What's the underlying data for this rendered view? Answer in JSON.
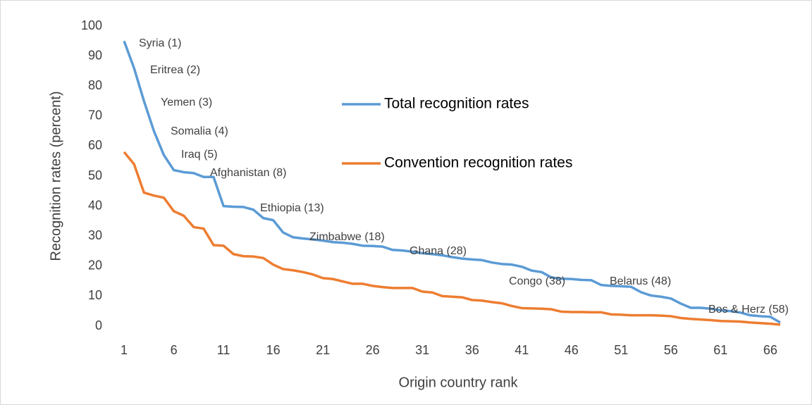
{
  "chart_data": {
    "type": "line",
    "x_label": "Origin country rank",
    "y_label": "Recognition rates (percent)",
    "x": [
      1,
      2,
      3,
      4,
      5,
      6,
      7,
      8,
      9,
      10,
      11,
      12,
      13,
      14,
      15,
      16,
      17,
      18,
      19,
      20,
      21,
      22,
      23,
      24,
      25,
      26,
      27,
      28,
      29,
      30,
      31,
      32,
      33,
      34,
      35,
      36,
      37,
      38,
      39,
      40,
      41,
      42,
      43,
      44,
      45,
      46,
      47,
      48,
      49,
      50,
      51,
      52,
      53,
      54,
      55,
      56,
      57,
      58,
      59,
      60,
      61,
      62,
      63,
      64,
      65,
      66,
      67
    ],
    "xlim": [
      0.5,
      67.5
    ],
    "xticks": [
      1,
      6,
      11,
      16,
      21,
      26,
      31,
      36,
      41,
      46,
      51,
      56,
      61,
      66
    ],
    "ylim": [
      0,
      100
    ],
    "yticks": [
      0,
      10,
      20,
      30,
      40,
      50,
      60,
      70,
      80,
      90,
      100
    ],
    "grid": false,
    "legend": "center",
    "series": [
      {
        "name": "Total  recognition rates",
        "color": "#5b9bd5",
        "values": [
          95,
          86,
          75,
          65,
          57,
          52,
          51.3,
          51,
          49.7,
          49.7,
          40,
          39.8,
          39.7,
          38.8,
          36,
          35.3,
          31.2,
          29.6,
          29.2,
          28.9,
          28.5,
          28,
          27.8,
          27.4,
          26.8,
          26.7,
          26.5,
          25.4,
          25.2,
          24.8,
          24.3,
          24,
          23.6,
          23,
          22.5,
          22.2,
          22,
          21.2,
          20.7,
          20.5,
          19.8,
          18.5,
          18,
          16.2,
          15.8,
          15.7,
          15.4,
          15.3,
          13.7,
          13.4,
          13.3,
          13.1,
          11.3,
          10.2,
          9.8,
          9.2,
          7.5,
          6.1,
          6.1,
          5.8,
          5.3,
          5,
          4.5,
          3.6,
          3.3,
          3.1,
          1.2
        ]
      },
      {
        "name": "Convention recognition rates",
        "color": "#ed7d31",
        "values": [
          58,
          54,
          44.5,
          43.5,
          42.8,
          38.3,
          36.8,
          33,
          32.5,
          27,
          26.8,
          24,
          23.3,
          23.2,
          22.7,
          20.5,
          19,
          18.6,
          18,
          17.2,
          16,
          15.7,
          14.9,
          14.1,
          14.1,
          13.4,
          13,
          12.7,
          12.7,
          12.7,
          11.5,
          11.2,
          10,
          9.8,
          9.6,
          8.7,
          8.5,
          8,
          7.6,
          6.7,
          6,
          5.9,
          5.8,
          5.6,
          4.8,
          4.7,
          4.7,
          4.6,
          4.6,
          3.9,
          3.8,
          3.6,
          3.6,
          3.6,
          3.5,
          3.3,
          2.7,
          2.4,
          2.2,
          2,
          1.7,
          1.6,
          1.5,
          1.2,
          1,
          0.8,
          0.5
        ]
      }
    ],
    "annotations": [
      "Syria (1)",
      "Eritrea (2)",
      "Yemen (3)",
      "Somalia (4)",
      "Iraq (5)",
      "Afghanistan (8)",
      "Ethiopia (13)",
      "Zimbabwe (18)",
      "Ghana (28)",
      "Congo (38)",
      "Belarus (48)",
      "Bos & Herz (58)"
    ]
  }
}
